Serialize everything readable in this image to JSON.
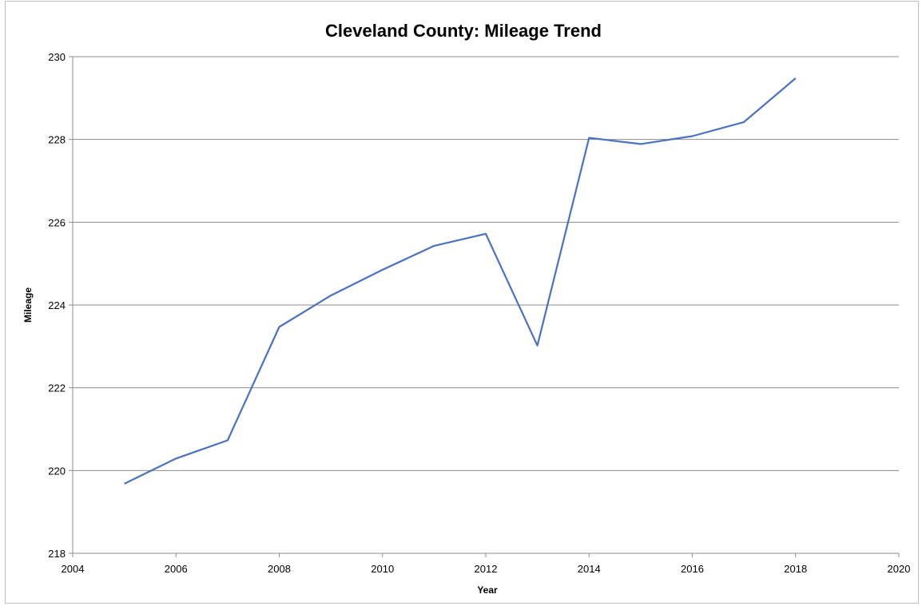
{
  "chart_data": {
    "type": "line",
    "title": "Cleveland County: Mileage Trend",
    "xlabel": "Year",
    "ylabel": "Mileage",
    "xlim": [
      2004,
      2020
    ],
    "ylim": [
      218,
      230
    ],
    "xticks": [
      2004,
      2006,
      2008,
      2010,
      2012,
      2014,
      2016,
      2018,
      2020
    ],
    "yticks": [
      218,
      220,
      222,
      224,
      226,
      228,
      230
    ],
    "grid": "horizontal",
    "legend": "none",
    "colors": {
      "line": "#4a72c0",
      "grid": "#8c8c8c",
      "axis": "#8c8c8c"
    },
    "series": [
      {
        "x": [
          2005,
          2006,
          2007,
          2008,
          2009,
          2010,
          2011,
          2012,
          2013,
          2014,
          2015,
          2016,
          2017,
          2018
        ],
        "values": [
          219.68,
          220.29,
          220.73,
          223.47,
          224.23,
          224.85,
          225.43,
          225.72,
          223.02,
          228.04,
          227.89,
          228.08,
          228.42,
          229.48
        ]
      }
    ]
  }
}
